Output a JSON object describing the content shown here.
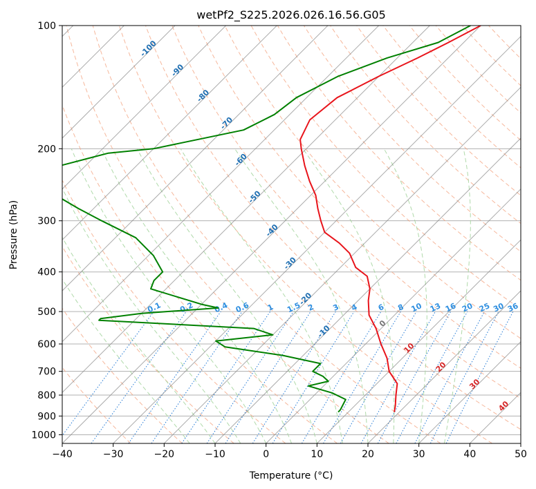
{
  "chart_data": {
    "type": "skew-t",
    "title": "wetPf2_S225.2026.026.16.56.G05",
    "xlabel": "Temperature (°C)",
    "ylabel": "Pressure (hPa)",
    "xlim": [
      -40,
      50
    ],
    "ylim": [
      1050,
      100
    ],
    "y_scale": "log",
    "x_ticks": [
      "−40",
      "−30",
      "−20",
      "−10",
      "0",
      "10",
      "20",
      "30",
      "40",
      "50"
    ],
    "y_ticks": [
      "100",
      "200",
      "300",
      "400",
      "500",
      "600",
      "700",
      "800",
      "900",
      "1000"
    ],
    "grid": true,
    "skew_deg": 45,
    "series": [
      {
        "kind": "temperature",
        "color": "#e8141b",
        "points": [
          [
            -40,
            100
          ],
          [
            -43,
            110
          ],
          [
            -46,
            120
          ],
          [
            -50,
            133
          ],
          [
            -54,
            150
          ],
          [
            -55,
            170
          ],
          [
            -53,
            190
          ],
          [
            -51,
            200
          ],
          [
            -47,
            220
          ],
          [
            -43,
            240
          ],
          [
            -39,
            260
          ],
          [
            -36,
            280
          ],
          [
            -33,
            300
          ],
          [
            -30,
            320
          ],
          [
            -25,
            340
          ],
          [
            -21,
            360
          ],
          [
            -17,
            390
          ],
          [
            -13,
            410
          ],
          [
            -10,
            440
          ],
          [
            -8,
            470
          ],
          [
            -5,
            510
          ],
          [
            -1,
            550
          ],
          [
            3,
            600
          ],
          [
            7,
            650
          ],
          [
            10,
            700
          ],
          [
            14,
            750
          ],
          [
            16,
            800
          ],
          [
            18,
            850
          ],
          [
            19,
            880
          ]
        ]
      },
      {
        "kind": "dewpoint",
        "color": "#008000",
        "points": [
          [
            -42,
            100
          ],
          [
            -45,
            110
          ],
          [
            -52,
            120
          ],
          [
            -58,
            133
          ],
          [
            -62,
            150
          ],
          [
            -63,
            165
          ],
          [
            -66,
            180
          ],
          [
            -80,
            200
          ],
          [
            -88,
            205
          ],
          [
            -95,
            220
          ],
          [
            -95,
            240
          ],
          [
            -90,
            260
          ],
          [
            -83,
            280
          ],
          [
            -76,
            300
          ],
          [
            -66,
            330
          ],
          [
            -59,
            365
          ],
          [
            -54,
            400
          ],
          [
            -54,
            420
          ],
          [
            -53,
            440
          ],
          [
            -40,
            480
          ],
          [
            -36,
            490
          ],
          [
            -50,
            505
          ],
          [
            -57,
            520
          ],
          [
            -57,
            525
          ],
          [
            -25,
            550
          ],
          [
            -20,
            570
          ],
          [
            -30,
            590
          ],
          [
            -27,
            610
          ],
          [
            -14,
            640
          ],
          [
            -5,
            670
          ],
          [
            -5,
            700
          ],
          [
            -2,
            720
          ],
          [
            0,
            740
          ],
          [
            -3,
            760
          ],
          [
            3,
            790
          ],
          [
            7,
            820
          ],
          [
            8,
            870
          ],
          [
            8,
            880
          ]
        ]
      }
    ],
    "dry_adiabats_theta_C": [
      -30,
      -20,
      -10,
      0,
      10,
      20,
      30,
      40,
      50,
      60,
      70,
      80,
      90,
      100,
      110,
      120,
      130,
      140,
      150,
      160,
      170,
      180
    ],
    "moist_adiabats_start_C": [
      -15,
      -10,
      -5,
      0,
      5,
      10,
      15,
      20,
      25,
      30,
      35
    ],
    "mixing_ratio_labels": [
      "0.1",
      "0.2",
      "0.4",
      "0.6",
      "1",
      "1.5",
      "2",
      "3",
      "4",
      "6",
      "8",
      "10",
      "13",
      "16",
      "20",
      "25",
      "30",
      "36"
    ],
    "isotherm_labels_cold": [
      "-100",
      "-90",
      "-80",
      "-70",
      "-60",
      "-50",
      "-40",
      "-30",
      "-20",
      "-10"
    ],
    "isotherm_labels_warm": [
      "0",
      "10",
      "20",
      "30",
      "40"
    ],
    "colors": {
      "dry_adiabat": "#f4a582",
      "moist_adiabat": "#a6d5a0",
      "mixing_ratio": "#1f77d4",
      "isotherm": "#888888",
      "cold_label": "#1f6fb2",
      "warm_label": "#d62728",
      "mixing_label": "#2f8fe0",
      "zero_label": "#777777"
    }
  }
}
